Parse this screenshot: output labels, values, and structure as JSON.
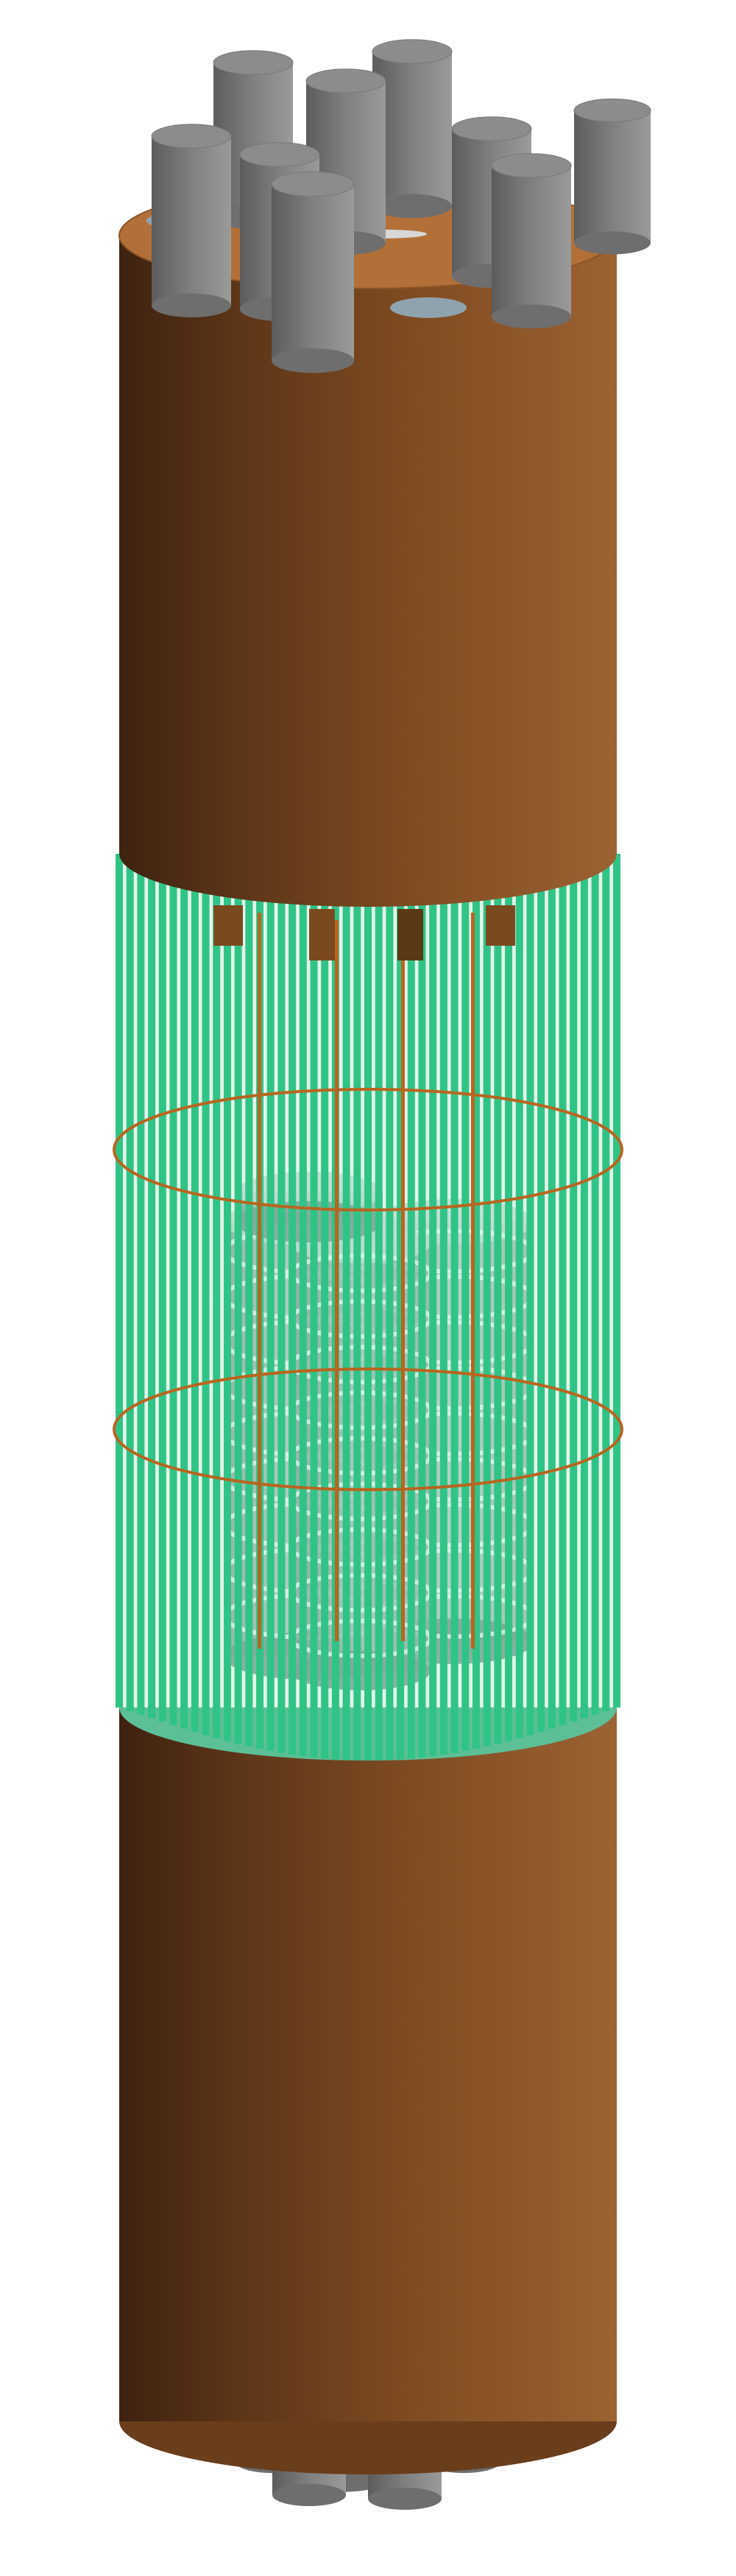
{
  "colors": {
    "background": "#ffffff",
    "copper_dark": "#4a2a12",
    "copper_mid": "#8a5528",
    "copper_light": "#9a6030",
    "copper_top": "#b8753a",
    "rod_dark": "#5a5a5a",
    "rod_mid": "#808080",
    "rod_light": "#9a9a9a",
    "rod_top": "#8a8a8a",
    "bar_green": "#2fc486",
    "bar_green_dark": "#1f8f5f",
    "bar_gap": "#d8efe2",
    "ring": "#b8651f",
    "inner_grey": "#7aa898",
    "inner_light": "#b9d8cc",
    "base_disc": "#5fbf9a"
  },
  "icons": {
    "top_rods": "cylinder-rod-icon",
    "bottom_rods": "cylinder-rod-icon"
  }
}
